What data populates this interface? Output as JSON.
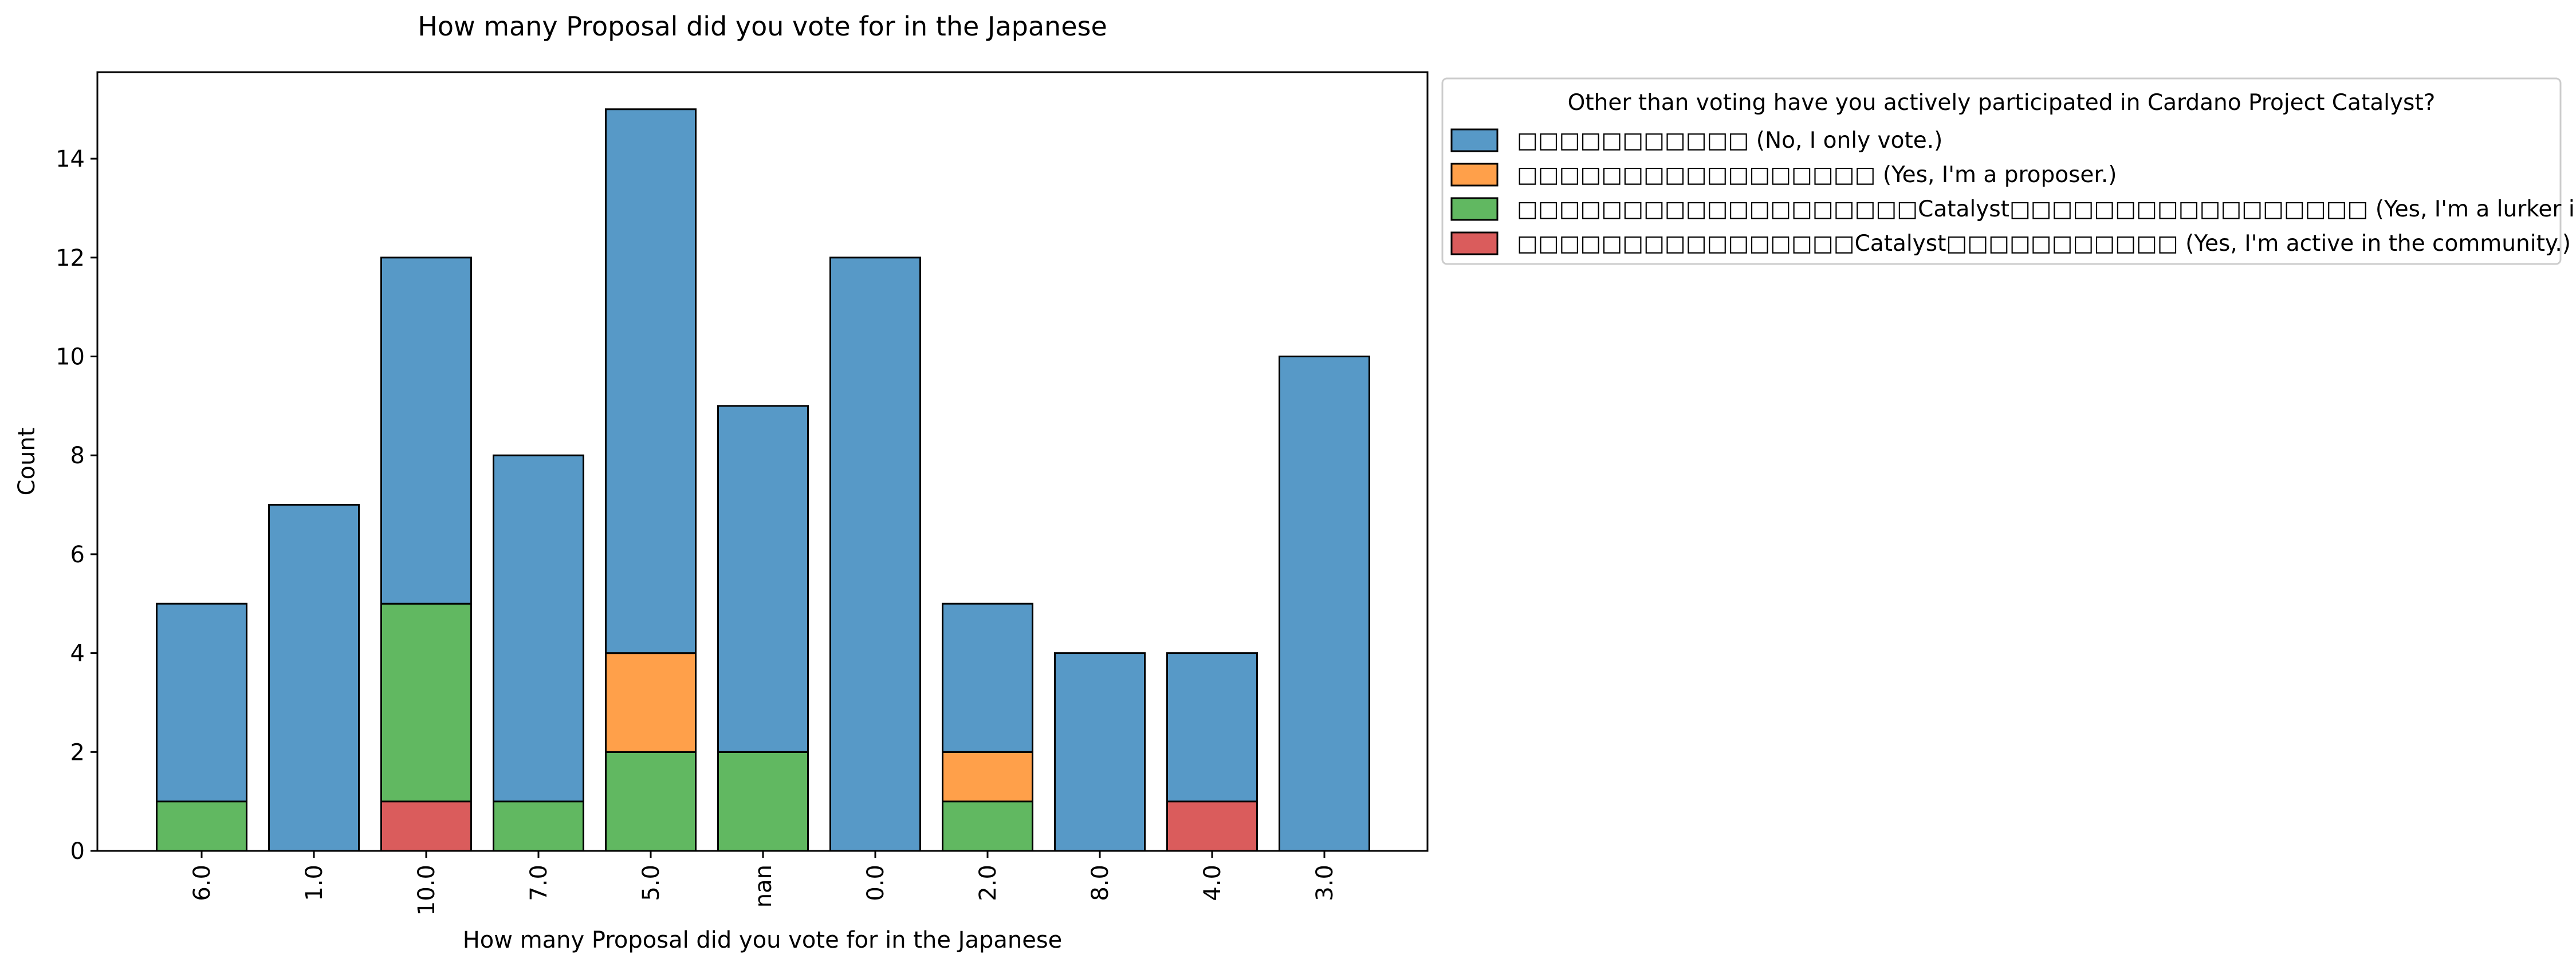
{
  "chart_data": {
    "type": "bar",
    "stacked": true,
    "title": "How many Proposal did you vote for in the Japanese",
    "xlabel": "How many Proposal did you vote for in the Japanese",
    "ylabel": "Count",
    "ylim": [
      0,
      15.75
    ],
    "yticks": [
      0,
      2,
      4,
      6,
      8,
      10,
      12,
      14
    ],
    "grid": false,
    "legend_position": "outside-top-right",
    "categories": [
      "6.0",
      "1.0",
      "10.0",
      "7.0",
      "5.0",
      "nan",
      "0.0",
      "2.0",
      "8.0",
      "4.0",
      "3.0"
    ],
    "legend_title": "Other than voting have you actively participated in Cardano Project Catalyst?",
    "series": [
      {
        "name": "□□□□□□□□□□□ (No, I only vote.)",
        "color": "#5799c7",
        "values": [
          4,
          7,
          7,
          7,
          11,
          7,
          12,
          3,
          4,
          3,
          10
        ]
      },
      {
        "name": "□□□□□□□□□□□□□□□□□ (Yes, I'm a proposer.)",
        "color": "#ffa04a",
        "values": [
          0,
          0,
          0,
          0,
          2,
          0,
          0,
          1,
          0,
          0,
          0
        ]
      },
      {
        "name": "□□□□□□□□□□□□□□□□□□□Catalyst□□□□□□□□□□□□□□□□□ (Yes, I'm a lurker in the community)",
        "color": "#61b861",
        "values": [
          1,
          0,
          4,
          1,
          2,
          2,
          0,
          1,
          0,
          0,
          0
        ]
      },
      {
        "name": "□□□□□□□□□□□□□□□□Catalyst□□□□□□□□□□□ (Yes, I'm active in the community.)",
        "color": "#da5c5c",
        "values": [
          0,
          0,
          1,
          0,
          0,
          0,
          0,
          0,
          0,
          1,
          0
        ]
      }
    ],
    "stack_order": [
      3,
      2,
      1,
      0
    ]
  }
}
